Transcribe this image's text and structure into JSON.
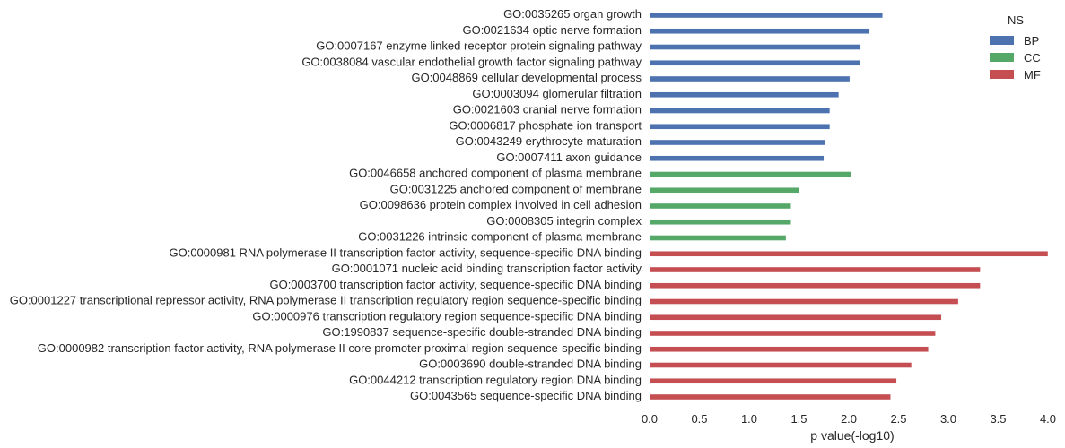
{
  "chart_data": {
    "type": "bar",
    "orientation": "horizontal",
    "xlabel": "p value(-log10)",
    "xlim": [
      0.0,
      4.0
    ],
    "xticks": [
      "0.0",
      "0.5",
      "1.0",
      "1.5",
      "2.0",
      "2.5",
      "3.0",
      "3.5",
      "4.0"
    ],
    "grid": false,
    "legend": {
      "title": "NS",
      "position": "top-right",
      "entries": [
        {
          "name": "BP",
          "color": "#4c72b0"
        },
        {
          "name": "CC",
          "color": "#55a868"
        },
        {
          "name": "MF",
          "color": "#c44e52"
        }
      ]
    },
    "categories": [
      "GO:0035265 organ growth",
      "GO:0021634 optic nerve formation",
      "GO:0007167 enzyme linked receptor protein signaling pathway",
      "GO:0038084 vascular endothelial growth factor signaling pathway",
      "GO:0048869 cellular developmental process",
      "GO:0003094 glomerular filtration",
      "GO:0021603 cranial nerve formation",
      "GO:0006817 phosphate ion transport",
      "GO:0043249 erythrocyte maturation",
      "GO:0007411 axon guidance",
      "GO:0046658 anchored component of plasma membrane",
      "GO:0031225 anchored component of membrane",
      "GO:0098636 protein complex involved in cell adhesion",
      "GO:0008305 integrin complex",
      "GO:0031226 intrinsic component of plasma membrane",
      "GO:0000981 RNA polymerase II transcription factor activity, sequence-specific DNA binding",
      "GO:0001071 nucleic acid binding transcription factor activity",
      "GO:0003700 transcription factor activity, sequence-specific DNA binding",
      "GO:0001227 transcriptional repressor activity, RNA polymerase II transcription regulatory region sequence-specific binding",
      "GO:0000976 transcription regulatory region sequence-specific DNA binding",
      "GO:1990837 sequence-specific double-stranded DNA binding",
      "GO:0000982 transcription factor activity, RNA polymerase II core promoter proximal region sequence-specific binding",
      "GO:0003690 double-stranded DNA binding",
      "GO:0044212 transcription regulatory region DNA binding",
      "GO:0043565 sequence-specific DNA binding"
    ],
    "groups": [
      "BP",
      "BP",
      "BP",
      "BP",
      "BP",
      "BP",
      "BP",
      "BP",
      "BP",
      "BP",
      "CC",
      "CC",
      "CC",
      "CC",
      "CC",
      "MF",
      "MF",
      "MF",
      "MF",
      "MF",
      "MF",
      "MF",
      "MF",
      "MF",
      "MF"
    ],
    "values": [
      2.34,
      2.21,
      2.12,
      2.11,
      2.01,
      1.9,
      1.81,
      1.81,
      1.76,
      1.75,
      2.02,
      1.5,
      1.42,
      1.42,
      1.37,
      4.0,
      3.32,
      3.32,
      3.1,
      2.93,
      2.87,
      2.8,
      2.63,
      2.48,
      2.42
    ]
  }
}
